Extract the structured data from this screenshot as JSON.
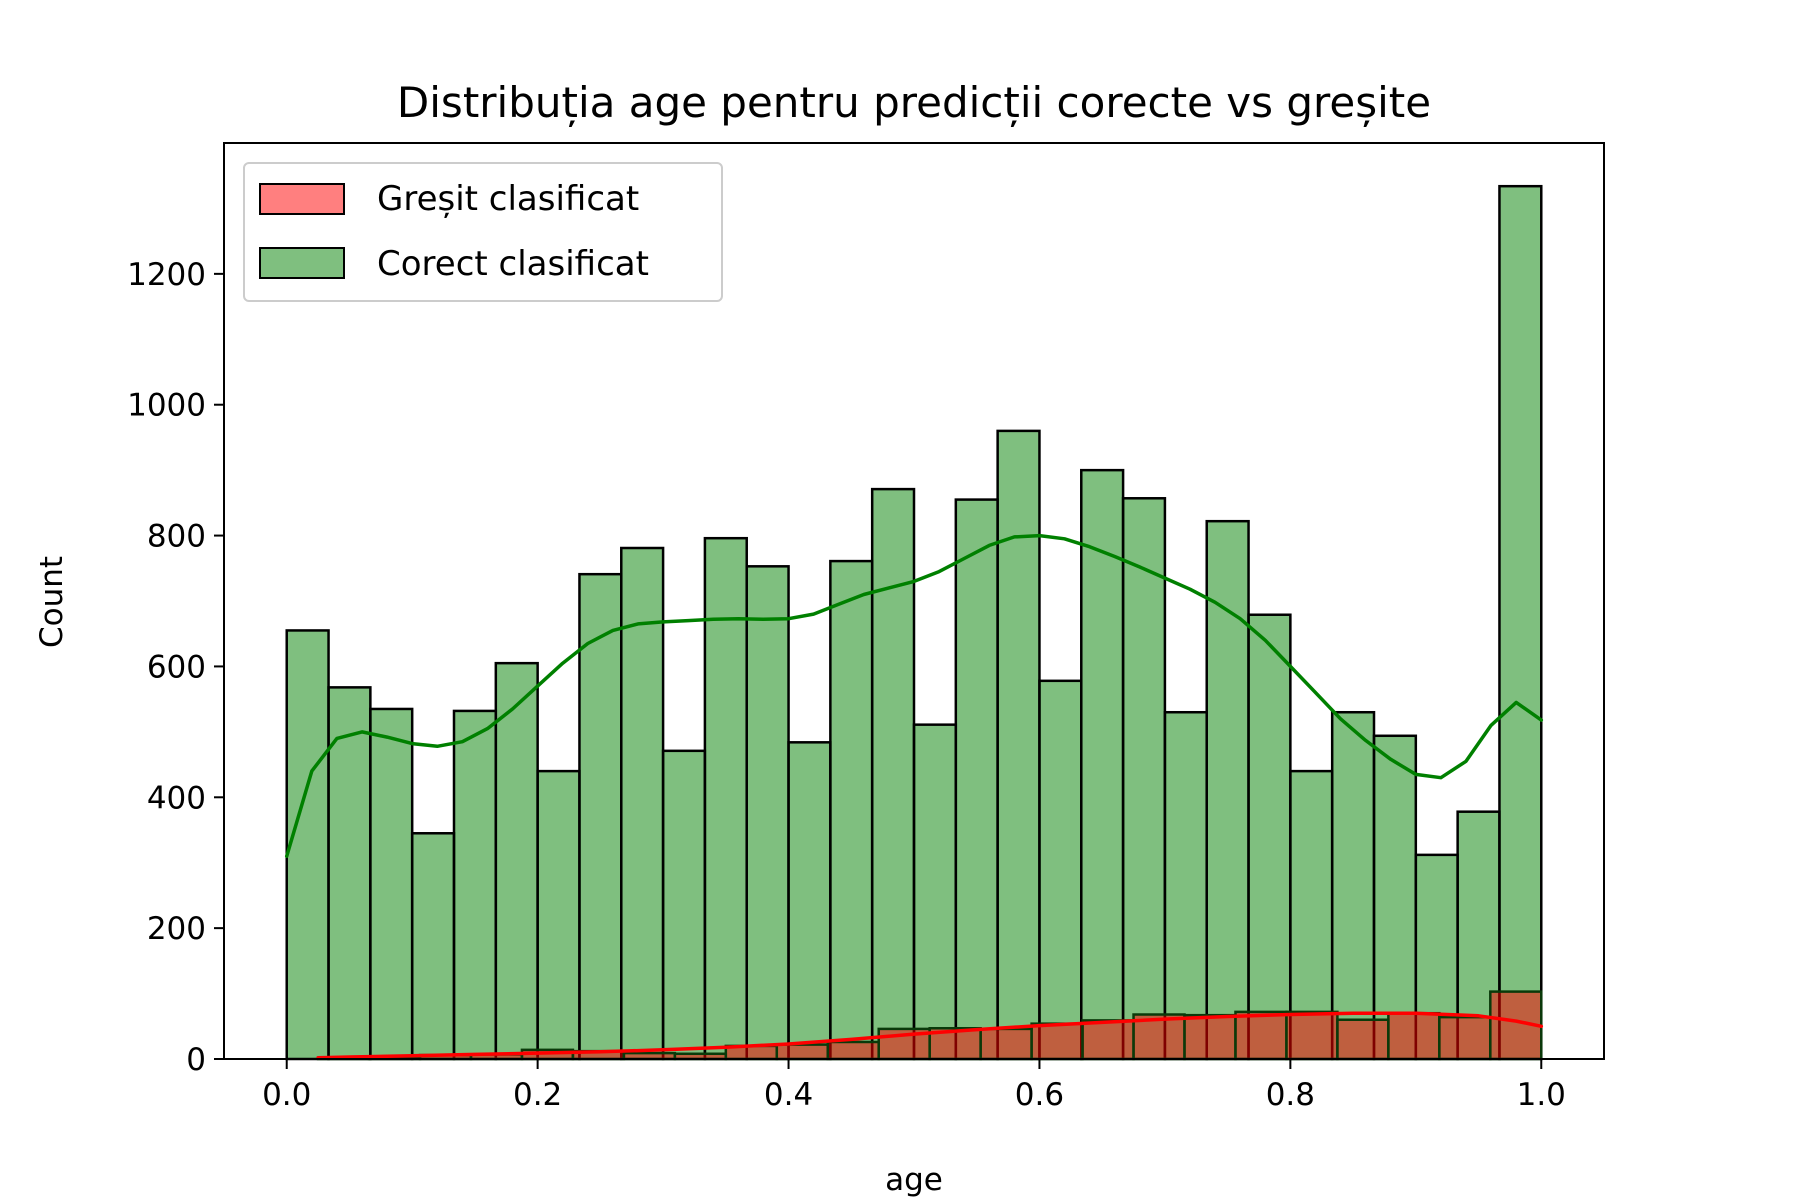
{
  "chart_data": {
    "type": "bar",
    "title": "Distribuția age pentru predicții corecte vs greșite",
    "xlabel": "age",
    "ylabel": "Count",
    "xlim": [
      -0.05,
      1.05
    ],
    "ylim": [
      0,
      1400
    ],
    "xticks": [
      0.0,
      0.2,
      0.4,
      0.6,
      0.8,
      1.0
    ],
    "xtick_labels": [
      "0.0",
      "0.2",
      "0.4",
      "0.6",
      "0.8",
      "1.0"
    ],
    "yticks": [
      0,
      200,
      400,
      600,
      800,
      1000,
      1200
    ],
    "ytick_labels": [
      "0",
      "200",
      "400",
      "600",
      "800",
      "1000",
      "1200"
    ],
    "grid": false,
    "legend_position": "top-left",
    "series": [
      {
        "name": "Corect clasificat",
        "color": "#008000",
        "bin_range": [
          0.0,
          1.0
        ],
        "values": [
          655,
          568,
          535,
          345,
          532,
          605,
          440,
          741,
          781,
          471,
          796,
          753,
          484,
          761,
          871,
          511,
          855,
          960,
          578,
          900,
          857,
          530,
          822,
          679,
          440,
          530,
          494,
          312,
          378,
          1334
        ],
        "kde": {
          "x": [
            0.0,
            0.02,
            0.04,
            0.06,
            0.08,
            0.1,
            0.12,
            0.14,
            0.16,
            0.18,
            0.2,
            0.22,
            0.24,
            0.26,
            0.28,
            0.3,
            0.32,
            0.34,
            0.36,
            0.38,
            0.4,
            0.42,
            0.44,
            0.46,
            0.48,
            0.5,
            0.52,
            0.54,
            0.56,
            0.58,
            0.6,
            0.62,
            0.64,
            0.66,
            0.68,
            0.7,
            0.72,
            0.74,
            0.76,
            0.78,
            0.8,
            0.82,
            0.84,
            0.86,
            0.88,
            0.9,
            0.92,
            0.94,
            0.96,
            0.98,
            1.0
          ],
          "y": [
            310,
            440,
            490,
            500,
            492,
            482,
            478,
            485,
            505,
            535,
            570,
            605,
            635,
            655,
            665,
            668,
            670,
            672,
            673,
            672,
            673,
            680,
            695,
            710,
            720,
            730,
            745,
            765,
            785,
            798,
            800,
            795,
            783,
            768,
            752,
            735,
            718,
            698,
            673,
            640,
            600,
            560,
            520,
            487,
            458,
            435,
            430,
            455,
            510,
            545,
            518
          ]
        }
      },
      {
        "name": "Greșit clasificat",
        "color": "#ff0000",
        "bin_range": [
          0.025,
          1.0
        ],
        "values": [
          2,
          3,
          6,
          7,
          14,
          12,
          9,
          8,
          20,
          22,
          26,
          46,
          47,
          46,
          54,
          59,
          68,
          67,
          72,
          72,
          60,
          70,
          64,
          103
        ],
        "kde": {
          "x": [
            0.025,
            0.05,
            0.1,
            0.15,
            0.2,
            0.25,
            0.3,
            0.35,
            0.4,
            0.45,
            0.5,
            0.55,
            0.6,
            0.65,
            0.7,
            0.75,
            0.8,
            0.85,
            0.9,
            0.95,
            0.98,
            1.0
          ],
          "y": [
            2,
            3,
            5,
            7,
            9,
            11,
            14,
            18,
            23,
            30,
            38,
            45,
            51,
            56,
            61,
            65,
            68,
            70,
            70,
            66,
            58,
            50
          ]
        }
      }
    ]
  }
}
